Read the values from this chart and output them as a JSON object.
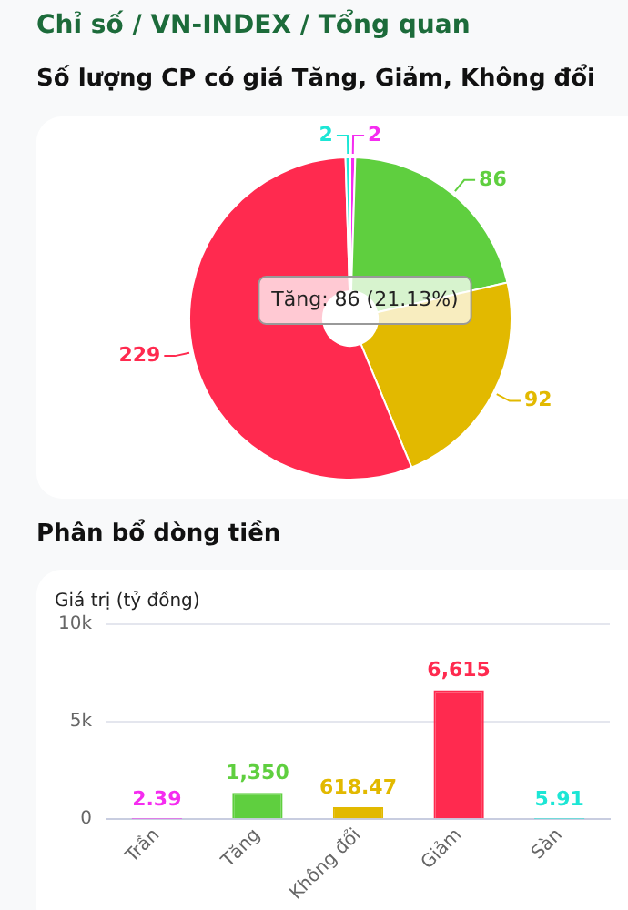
{
  "chart_data": [
    {
      "type": "donut",
      "title": "Số lượng CP có giá Tăng, Giảm, Không đổi",
      "annotations": [
        "Chỉ số / VN-INDEX / Tổng quan",
        "Tăng: 86 (21.13%)"
      ],
      "categories": [
        null,
        null,
        null,
        null,
        null
      ],
      "values": [
        2,
        86,
        92,
        229,
        2
      ],
      "colors": [
        "#f52cf0",
        "#5fcf3f",
        "#e2b900",
        "#ff2a4f",
        "#1ce6d5"
      ],
      "data_labels": true,
      "legend": false
    },
    {
      "type": "bar",
      "title": "Phân bổ dòng tiền",
      "ylabel": "Giá trị (tỷ đồng)",
      "categories": [
        "Trần",
        "Tăng",
        "Không đổi",
        "Giảm",
        "Sàn"
      ],
      "values": [
        2.39,
        1350,
        618.47,
        6615,
        5.91
      ],
      "colors": [
        "#f52cf0",
        "#5fcf3f",
        "#e2b900",
        "#ff2a4f",
        "#1ce6d5"
      ],
      "value_labels": [
        "2.39",
        "1,350",
        "618.47",
        "6,615",
        "5.91"
      ],
      "ylim": [
        0,
        10000
      ],
      "yticks": [
        0,
        {
          "value": 5000,
          "label": "5k"
        },
        {
          "value": 10000,
          "label": "10k"
        }
      ],
      "grid": "y",
      "legend": false
    }
  ]
}
